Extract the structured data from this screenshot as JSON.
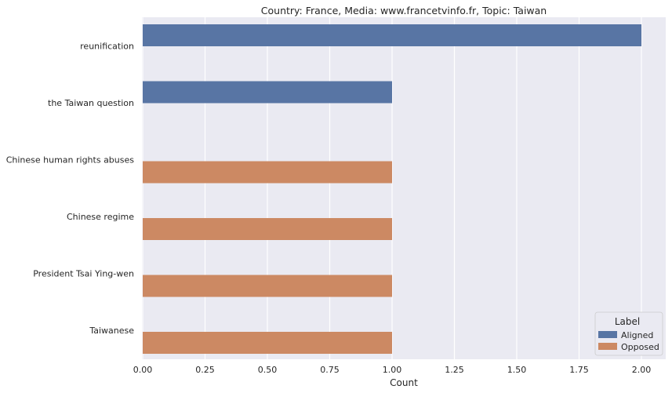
{
  "chart_data": {
    "type": "bar",
    "orientation": "horizontal",
    "title": "Country: France, Media: www.francetvinfo.fr, Topic: Taiwan",
    "xlabel": "Count",
    "ylabel": "",
    "xlim": [
      0,
      2.1
    ],
    "xticks": [
      0.0,
      0.25,
      0.5,
      0.75,
      1.0,
      1.25,
      1.5,
      1.75,
      2.0
    ],
    "xtick_labels": [
      "0.00",
      "0.25",
      "0.50",
      "0.75",
      "1.00",
      "1.25",
      "1.50",
      "1.75",
      "2.00"
    ],
    "categories": [
      "reunification",
      "the Taiwan question",
      "Chinese human rights abuses",
      "Chinese regime",
      "President Tsai Ying-wen",
      "Taiwanese"
    ],
    "series": [
      {
        "name": "Aligned",
        "color": "#5875a4",
        "values": [
          2,
          1,
          null,
          null,
          null,
          null
        ]
      },
      {
        "name": "Opposed",
        "color": "#cc8963",
        "values": [
          null,
          null,
          1,
          1,
          1,
          1
        ]
      }
    ],
    "grid": true,
    "background": "#eaeaf2",
    "legend": {
      "title": "Label",
      "placement": "bottom-right"
    }
  }
}
